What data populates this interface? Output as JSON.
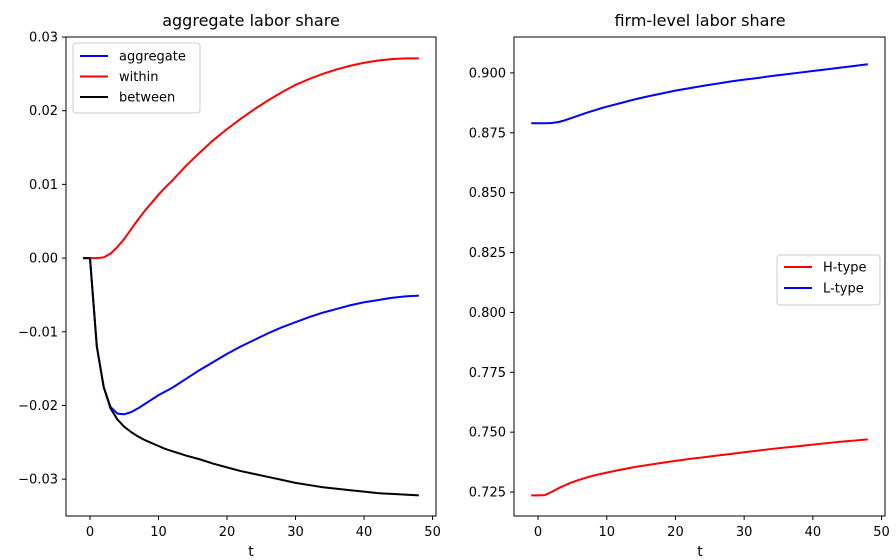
{
  "chart_data": [
    {
      "type": "line",
      "title": "aggregate labor share",
      "xlabel": "t",
      "ylabel": "",
      "xlim": [
        -3.5,
        50.5
      ],
      "ylim": [
        -0.035,
        0.03
      ],
      "xticks": [
        0,
        10,
        20,
        30,
        40,
        50
      ],
      "xtick_labels": [
        "0",
        "10",
        "20",
        "30",
        "40",
        "50"
      ],
      "yticks": [
        -0.03,
        -0.02,
        -0.01,
        0.0,
        0.01,
        0.02,
        0.03
      ],
      "ytick_labels": [
        "−0.03",
        "−0.02",
        "−0.01",
        "0.00",
        "0.01",
        "0.02",
        "0.03"
      ],
      "grid": false,
      "legend_position": "top-left",
      "series": [
        {
          "name": "aggregate",
          "color": "#0000ff",
          "x": [
            -1,
            0,
            1,
            2,
            3,
            4,
            5,
            6,
            7,
            8,
            9,
            10,
            11,
            12,
            13,
            14,
            16,
            18,
            20,
            22,
            24,
            26,
            28,
            30,
            32,
            34,
            36,
            38,
            40,
            42,
            44,
            46,
            48
          ],
          "y": [
            0.0,
            0.0,
            -0.012,
            -0.0175,
            -0.0202,
            -0.0211,
            -0.0212,
            -0.0209,
            -0.0204,
            -0.0198,
            -0.0192,
            -0.0186,
            -0.0181,
            -0.0176,
            -0.017,
            -0.0164,
            -0.0152,
            -0.0141,
            -0.013,
            -0.012,
            -0.0111,
            -0.0102,
            -0.0094,
            -0.0087,
            -0.008,
            -0.0074,
            -0.0069,
            -0.0064,
            -0.006,
            -0.0057,
            -0.0054,
            -0.0052,
            -0.0051
          ]
        },
        {
          "name": "within",
          "color": "#ff0000",
          "x": [
            -1,
            0,
            1,
            2,
            3,
            4,
            5,
            6,
            7,
            8,
            9,
            10,
            11,
            12,
            13,
            14,
            16,
            18,
            20,
            22,
            24,
            26,
            28,
            30,
            32,
            34,
            36,
            38,
            40,
            42,
            44,
            46,
            48
          ],
          "y": [
            0.0,
            0.0,
            0.0,
            0.0001,
            0.0006,
            0.0015,
            0.0026,
            0.0039,
            0.0052,
            0.0064,
            0.0075,
            0.0086,
            0.0096,
            0.0105,
            0.0115,
            0.0125,
            0.0143,
            0.016,
            0.0175,
            0.0189,
            0.0202,
            0.0214,
            0.0225,
            0.0235,
            0.0243,
            0.025,
            0.0256,
            0.0261,
            0.0265,
            0.0268,
            0.027,
            0.0271,
            0.0271
          ]
        },
        {
          "name": "between",
          "color": "#000000",
          "x": [
            -1,
            0,
            1,
            2,
            3,
            4,
            5,
            6,
            7,
            8,
            9,
            10,
            11,
            12,
            13,
            14,
            16,
            18,
            20,
            22,
            24,
            26,
            28,
            30,
            32,
            34,
            36,
            38,
            40,
            42,
            44,
            46,
            48
          ],
          "y": [
            0.0,
            0.0,
            -0.012,
            -0.0175,
            -0.0204,
            -0.0219,
            -0.0229,
            -0.0236,
            -0.0242,
            -0.0247,
            -0.0251,
            -0.0255,
            -0.0259,
            -0.0262,
            -0.0265,
            -0.0268,
            -0.0273,
            -0.0279,
            -0.0284,
            -0.0289,
            -0.0293,
            -0.0297,
            -0.0301,
            -0.0305,
            -0.0308,
            -0.0311,
            -0.0313,
            -0.0315,
            -0.0317,
            -0.0319,
            -0.032,
            -0.0321,
            -0.0322
          ]
        }
      ]
    },
    {
      "type": "line",
      "title": "firm-level labor share",
      "xlabel": "t",
      "ylabel": "",
      "xlim": [
        -3.5,
        50.5
      ],
      "ylim": [
        0.715,
        0.915
      ],
      "xticks": [
        0,
        10,
        20,
        30,
        40,
        50
      ],
      "xtick_labels": [
        "0",
        "10",
        "20",
        "30",
        "40",
        "50"
      ],
      "yticks": [
        0.725,
        0.75,
        0.775,
        0.8,
        0.825,
        0.85,
        0.875,
        0.9
      ],
      "ytick_labels": [
        "0.725",
        "0.750",
        "0.775",
        "0.800",
        "0.825",
        "0.850",
        "0.875",
        "0.900"
      ],
      "grid": false,
      "legend_position": "center-right",
      "series": [
        {
          "name": "H-type",
          "color": "#ff0000",
          "x": [
            -1,
            0,
            1,
            2,
            3,
            4,
            5,
            6,
            7,
            8,
            9,
            10,
            12,
            14,
            16,
            18,
            20,
            22,
            24,
            26,
            28,
            30,
            32,
            34,
            36,
            38,
            40,
            42,
            44,
            46,
            48
          ],
          "y": [
            0.7236,
            0.7236,
            0.7237,
            0.7251,
            0.7266,
            0.7279,
            0.7291,
            0.7301,
            0.731,
            0.7318,
            0.7325,
            0.7331,
            0.7343,
            0.7354,
            0.7363,
            0.7372,
            0.738,
            0.7388,
            0.7395,
            0.7402,
            0.7409,
            0.7416,
            0.7423,
            0.743,
            0.7436,
            0.7442,
            0.7448,
            0.7454,
            0.746,
            0.7465,
            0.747
          ]
        },
        {
          "name": "L-type",
          "color": "#0000ff",
          "x": [
            -1,
            0,
            1,
            2,
            3,
            4,
            5,
            6,
            7,
            8,
            9,
            10,
            12,
            14,
            16,
            18,
            20,
            22,
            24,
            26,
            28,
            30,
            32,
            34,
            36,
            38,
            40,
            42,
            44,
            46,
            48
          ],
          "y": [
            0.879,
            0.879,
            0.879,
            0.8791,
            0.8795,
            0.8803,
            0.8813,
            0.8823,
            0.8833,
            0.8842,
            0.8851,
            0.8859,
            0.8874,
            0.8889,
            0.8902,
            0.8914,
            0.8926,
            0.8936,
            0.8946,
            0.8955,
            0.8964,
            0.8972,
            0.8979,
            0.8987,
            0.8994,
            0.9001,
            0.9008,
            0.9015,
            0.9022,
            0.9029,
            0.9036
          ]
        }
      ]
    }
  ]
}
